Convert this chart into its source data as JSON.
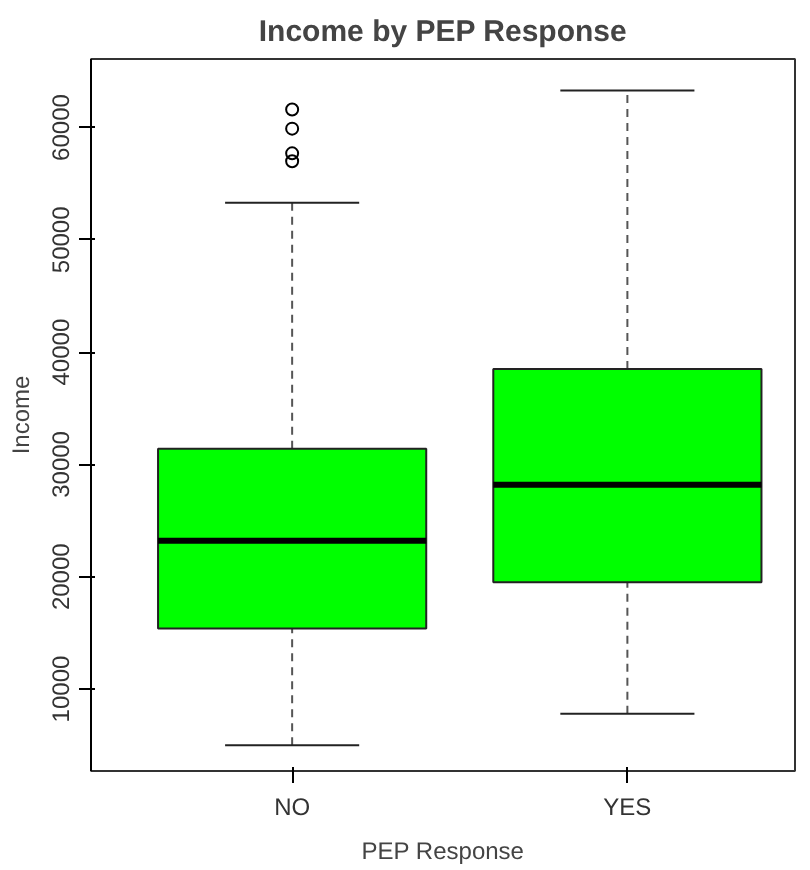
{
  "chart_data": {
    "type": "box",
    "title": "Income by PEP Response",
    "xlabel": "PEP Response",
    "ylabel": "Income",
    "categories": [
      "NO",
      "YES"
    ],
    "series": [
      {
        "color": "#00ff00",
        "boxes": [
          {
            "low": 5000,
            "q1": 15400,
            "median": 23200,
            "q3": 31400,
            "high": 53300,
            "outliers": [
              61600,
              59900,
              57700,
              57000
            ]
          },
          {
            "low": 7800,
            "q1": 19500,
            "median": 28200,
            "q3": 38500,
            "high": 63300
          }
        ]
      }
    ],
    "ylim": [
      2700,
      66100
    ],
    "yticks": [
      10000,
      20000,
      30000,
      40000,
      50000,
      60000
    ],
    "grid": false
  }
}
